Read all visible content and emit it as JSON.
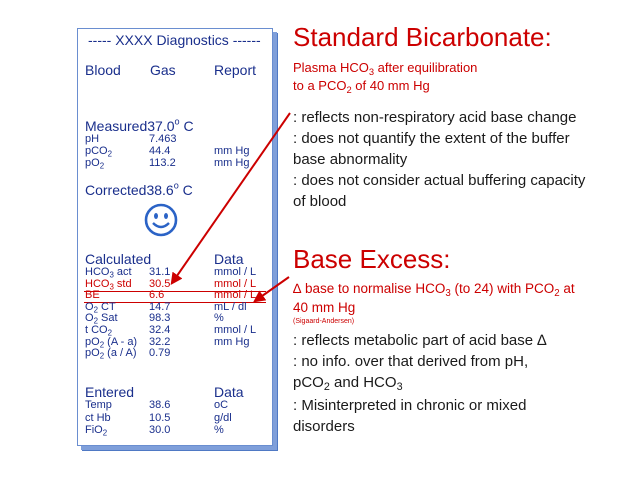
{
  "report": {
    "title": "----- XXXX Diagnostics ------",
    "header": [
      "Blood",
      "Gas",
      "Report"
    ],
    "measured": {
      "label": "Measured",
      "temp": "37.0",
      "deg": "o",
      "unit": "C"
    },
    "measured_rows": [
      {
        "name": "pH",
        "value": "7.463",
        "unit": ""
      },
      {
        "name": "pCO",
        "sub": "2",
        "value": "44.4",
        "unit": "mm Hg"
      },
      {
        "name": "pO",
        "sub": "2",
        "value": "113.2",
        "unit": "mm Hg"
      }
    ],
    "corrected": {
      "label": "Corrected",
      "temp": "38.6",
      "deg": "o",
      "unit": "C"
    },
    "calculated": {
      "label": "Calculated",
      "data_label": "Data"
    },
    "calculated_rows": [
      {
        "name": "HCO",
        "sub": "3",
        "suffix": " act",
        "value": "31.1",
        "unit": "mmol / L"
      },
      {
        "name": "HCO",
        "sub": "3",
        "suffix": " std",
        "value": "30.5",
        "unit": "mmol / L",
        "highlight": true
      },
      {
        "name": "BE",
        "sub": "",
        "suffix": "",
        "value": "6.6",
        "unit": "mmol / L",
        "highlight": true
      },
      {
        "name": "O",
        "sub": "2",
        "suffix": " CT",
        "value": "14.7",
        "unit": "mL / dl"
      },
      {
        "name": "O",
        "sub": "2",
        "suffix": " Sat",
        "value": "98.3",
        "unit": "%"
      },
      {
        "name": "t CO",
        "sub": "2",
        "suffix": "",
        "value": "32.4",
        "unit": "mmol / L"
      },
      {
        "name": "pO",
        "sub": "2",
        "suffix": " (A - a)",
        "value": "32.2",
        "unit": "mm Hg"
      },
      {
        "name": "pO",
        "sub": "2",
        "suffix": " (a / A)",
        "value": "0.79",
        "unit": ""
      }
    ],
    "entered": {
      "label": "Entered",
      "data_label": "Data"
    },
    "entered_rows": [
      {
        "name": "Temp",
        "sub": "",
        "value": "38.6",
        "unit": "oC"
      },
      {
        "name": "ct Hb",
        "sub": "",
        "value": "10.5",
        "unit": "g/dl"
      },
      {
        "name": "FiO",
        "sub": "2",
        "value": "30.0",
        "unit": "%"
      }
    ]
  },
  "standard_bicarbonate": {
    "heading": "Standard Bicarbonate:",
    "def_line1": {
      "a": "Plasma HCO",
      "sub": "3",
      "b": " after equilibration"
    },
    "def_line2": {
      "a": "to a PCO",
      "sub": "2",
      "b": " of 40 mm Hg"
    },
    "points": [
      ": reflects non-respiratory acid base change",
      ": does not quantify the extent of the buffer",
      "base abnormality",
      ": does not consider actual buffering capacity",
      "of blood"
    ]
  },
  "base_excess": {
    "heading": "Base Excess:",
    "def_line1": {
      "a": "∆ base to normalise HCO",
      "sub": "3",
      "b": " (to 24) with PCO",
      "sub2": "2",
      "c": " at"
    },
    "def_line2": "40 mm Hg",
    "citation": "(Sigaard-Andersen)",
    "point1": ": reflects metabolic part of acid base ∆",
    "point2": ": no info. over that derived from pH,",
    "point3": {
      "a": "pCO",
      "sub": "2",
      "b": " and HCO",
      "sub2": "3"
    },
    "point4": ": Misinterpreted in chronic or mixed",
    "point5": "disorders"
  },
  "colors": {
    "report_text": "#1a2f8c",
    "accent_red": "#cc0000",
    "face_blue": "#2b63c6",
    "border_blue": "#4f79c4"
  },
  "icons": {
    "face": "smiley-face-icon"
  }
}
